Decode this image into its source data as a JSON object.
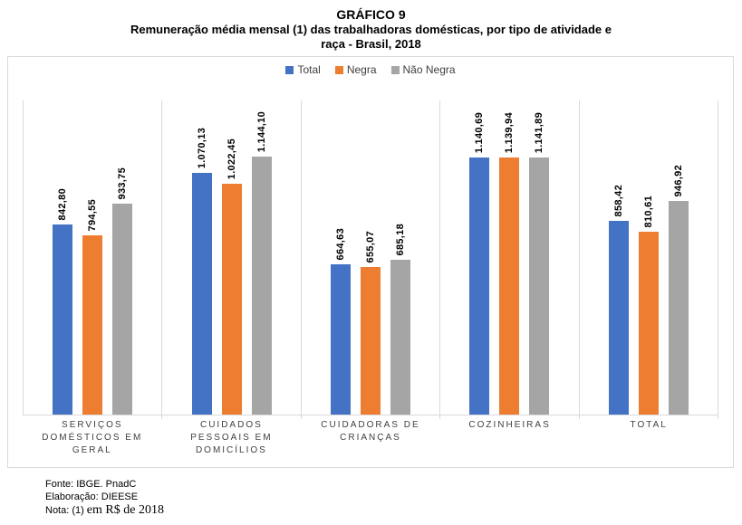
{
  "title": {
    "line1": "GRÁFICO 9",
    "line2": "Remuneração média mensal (1) das trabalhadoras domésticas, por tipo de atividade e",
    "line3": "raça -  Brasil, 2018"
  },
  "footer": {
    "fonte": "Fonte: IBGE. PnadC",
    "elaboracao": "Elaboração: DIEESE",
    "nota_prefix": "Nota: (1)",
    "nota_serif": "em R$ de 2018"
  },
  "colors": {
    "box_border": "#d9d9d9",
    "axis_line": "#d9d9d9",
    "value_label_text": "#000000",
    "category_text": "#404040"
  },
  "chart_data": {
    "type": "bar",
    "title": "GRÁFICO 9 — Remuneração média mensal (1) das trabalhadoras domésticas, por tipo de atividade e raça - Brasil, 2018",
    "categories": [
      "SERVIÇOS DOMÉSTICOS EM GERAL",
      "CUIDADOS PESSOAIS EM DOMICÍLIOS",
      "CUIDADORAS DE CRIANÇAS",
      "COZINHEIRAS",
      "TOTAL"
    ],
    "series": [
      {
        "name": "Total",
        "color": "#4472C4",
        "values": [
          842.8,
          1070.13,
          664.63,
          1140.69,
          858.42
        ],
        "labels": [
          "842,80",
          "1.070,13",
          "664,63",
          "1.140,69",
          "858,42"
        ]
      },
      {
        "name": "Negra",
        "color": "#ED7D31",
        "values": [
          794.55,
          1022.45,
          655.07,
          1139.94,
          810.61
        ],
        "labels": [
          "794,55",
          "1.022,45",
          "655,07",
          "1.139,94",
          "810,61"
        ]
      },
      {
        "name": "Não Negra",
        "color": "#A5A5A5",
        "values": [
          933.75,
          1144.1,
          685.18,
          1141.89,
          946.92
        ],
        "labels": [
          "933,75",
          "1.144,10",
          "685,18",
          "1.141,89",
          "946,92"
        ]
      }
    ],
    "xlabel": "",
    "ylabel": "",
    "ylim": [
      0,
      1400
    ],
    "y_axis_labels_visible": false,
    "grid": false,
    "legend_position": "top",
    "value_labels": "rotated-90-above-bars",
    "unit": "R$"
  }
}
